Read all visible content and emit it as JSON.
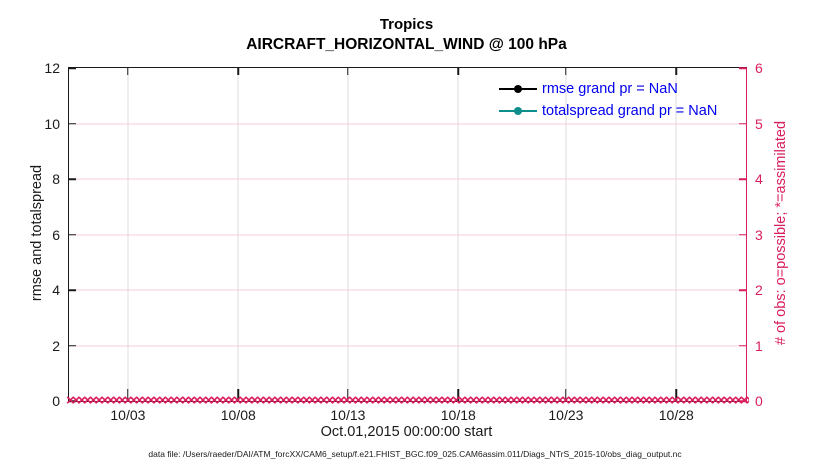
{
  "chart_data": {
    "type": "line",
    "title": "Tropics",
    "subtitle": "AIRCRAFT_HORIZONTAL_WIND @ 100 hPa",
    "xlabel": "Oct.01,2015 00:00:00 start",
    "x_axis": {
      "tick_labels": [
        "10/03",
        "10/08",
        "10/13",
        "10/18",
        "10/23",
        "10/28"
      ],
      "tick_percents": [
        8.7,
        25.0,
        41.2,
        57.5,
        73.4,
        89.7
      ],
      "start": "Oct.01,2015 00:00:00"
    },
    "left_axis": {
      "label": "rmse and totalspread",
      "ticks": [
        0,
        2,
        4,
        6,
        8,
        10,
        12
      ],
      "lim": [
        0,
        12
      ],
      "color": "#1a1a1a"
    },
    "right_axis": {
      "label": "# of obs: o=possible; *=assimilated",
      "ticks": [
        0,
        1,
        2,
        3,
        4,
        5,
        6
      ],
      "lim": [
        0,
        6
      ],
      "color": "#d91e5c"
    },
    "grid": {
      "vertical_color": "#dcdcdc",
      "horizontal_color": "#f6ccda",
      "horizontal_at_right_ticks": [
        1,
        2,
        3,
        4,
        5
      ]
    },
    "legend": {
      "position": "top-right",
      "text_color": "#0000ee",
      "entries": [
        {
          "label": "rmse grand pr = NaN",
          "color": "#000000",
          "marker": "circle"
        },
        {
          "label": "totalspread grand pr = NaN",
          "color": "#0e8d8d",
          "marker": "circle"
        }
      ]
    },
    "series": [
      {
        "name": "rmse",
        "grand_pr": "NaN",
        "values": []
      },
      {
        "name": "totalspread",
        "grand_pr": "NaN",
        "values": []
      },
      {
        "name": "# of obs (possible and assimilated)",
        "value_at_all_times": 0
      }
    ],
    "obs_band": {
      "marker": "×",
      "y_value": 0,
      "color": "#d91e5c",
      "repeat": 150
    }
  },
  "caption": "data file: /Users/raeder/DAI/ATM_forcXX/CAM6_setup/f.e21.FHIST_BGC.f09_025.CAM6assim.011/Diags_NTrS_2015-10/obs_diag_output.nc"
}
